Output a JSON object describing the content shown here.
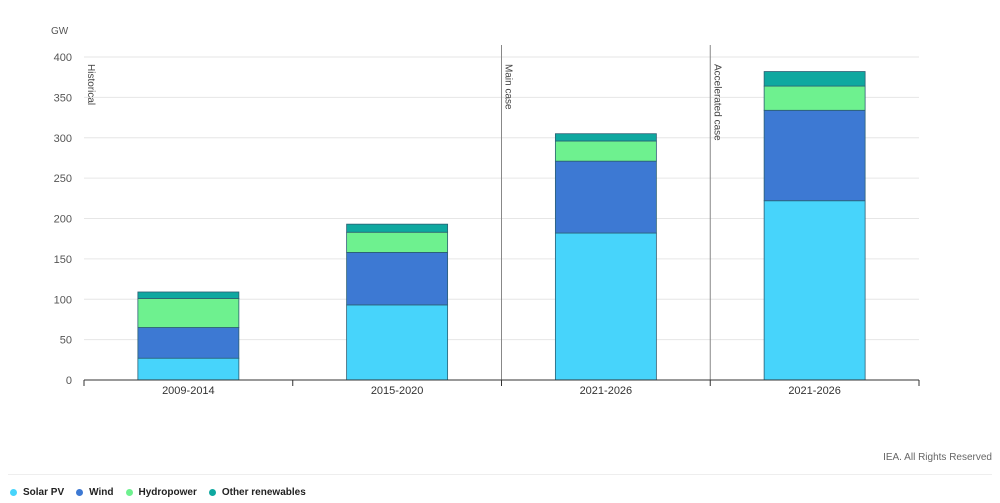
{
  "chart_data": {
    "type": "bar",
    "stacked": true,
    "ylabel": "GW",
    "ylim": [
      0,
      400
    ],
    "yticks": [
      0,
      50,
      100,
      150,
      200,
      250,
      300,
      350,
      400
    ],
    "categories": [
      "2009-2014",
      "2015-2020",
      "2021-2026",
      "2021-2026"
    ],
    "series": [
      {
        "name": "Solar PV",
        "color": "#47d4fb",
        "values": [
          27,
          93,
          182,
          222
        ]
      },
      {
        "name": "Wind",
        "color": "#3d79d3",
        "values": [
          38,
          65,
          89,
          112
        ]
      },
      {
        "name": "Hydropower",
        "color": "#6ef18f",
        "values": [
          36,
          25,
          25,
          30
        ]
      },
      {
        "name": "Other renewables",
        "color": "#0fa8a0",
        "values": [
          8,
          10,
          9,
          18
        ]
      }
    ],
    "annotations": [
      "Historical",
      "Main case",
      "Accelerated case"
    ],
    "grid": true,
    "legend": "bottom-left"
  },
  "credit": "IEA. All Rights Reserved"
}
